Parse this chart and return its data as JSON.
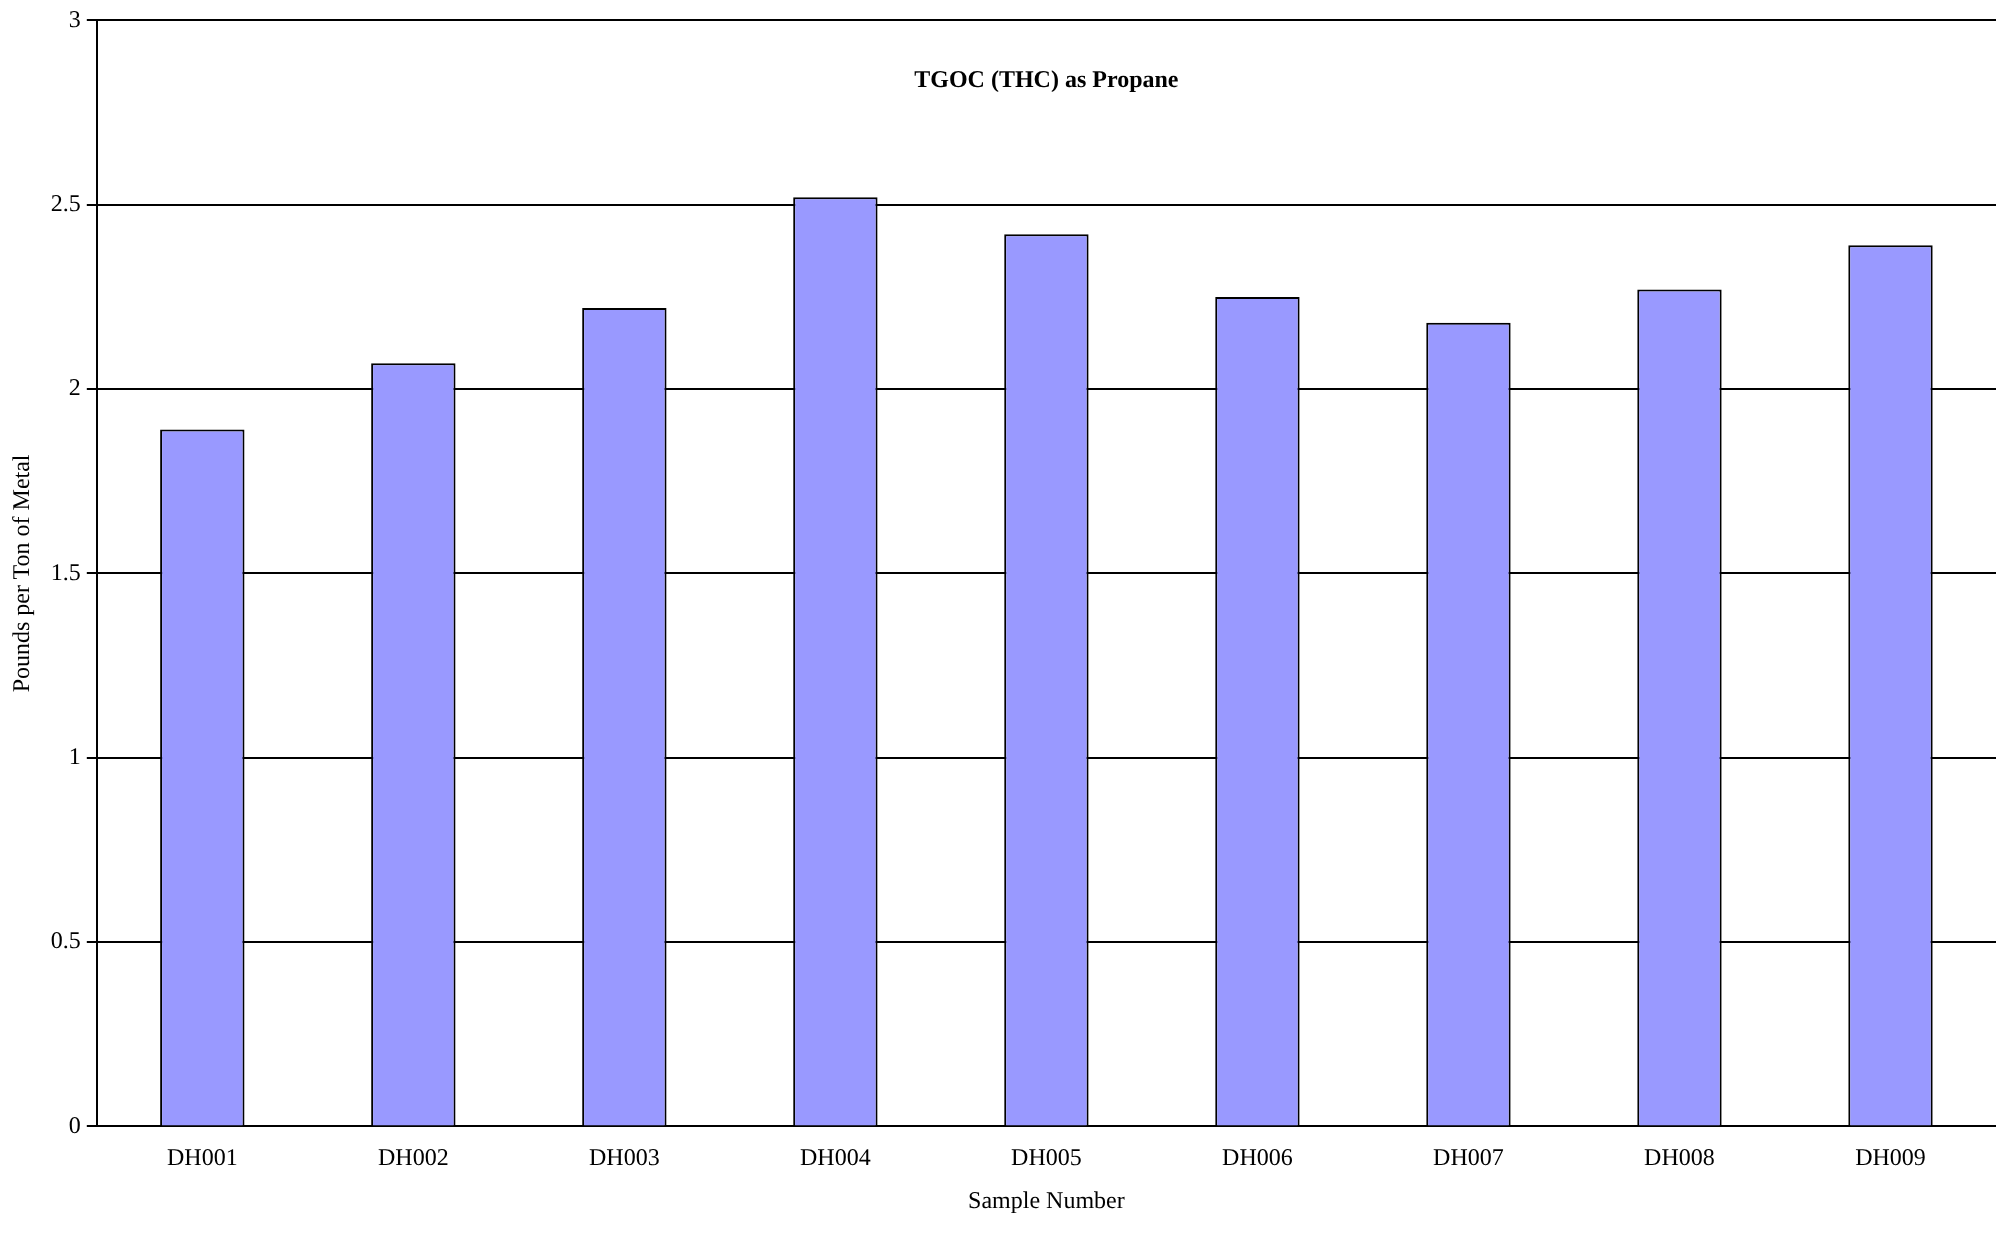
{
  "chart_data": {
    "type": "bar",
    "title": "TGOC (THC) as Propane",
    "xlabel": "Sample Number",
    "ylabel": "Pounds per Ton of Metal",
    "categories": [
      "DH001",
      "DH002",
      "DH003",
      "DH004",
      "DH005",
      "DH006",
      "DH007",
      "DH008",
      "DH009"
    ],
    "values": [
      1.89,
      2.07,
      2.22,
      2.52,
      2.42,
      2.25,
      2.18,
      2.27,
      2.39
    ],
    "color": "#9999ff",
    "ylim": [
      0,
      3
    ],
    "yticks": [
      0,
      0.5,
      1,
      1.5,
      2,
      2.5,
      3
    ],
    "grid": "y",
    "legend": false
  }
}
